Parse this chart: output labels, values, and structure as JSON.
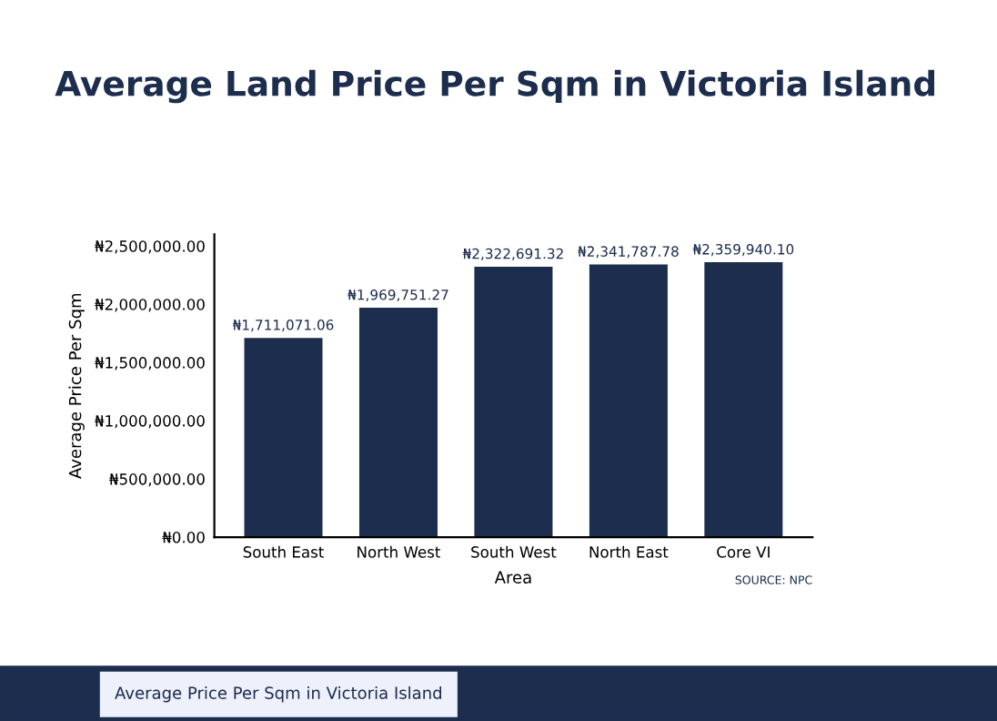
{
  "chart_data": {
    "type": "bar",
    "title": "Average Land Price Per Sqm in Victoria Island",
    "xlabel": "Area",
    "ylabel": "Average Price Per Sqm",
    "categories": [
      "South East",
      "North West",
      "South West",
      "North East",
      "Core VI"
    ],
    "values": [
      1711071.06,
      1969751.27,
      2322691.32,
      2341787.78,
      2359940.1
    ],
    "value_labels": [
      "₦1,711,071.06",
      "₦1,969,751.27",
      "₦2,322,691.32",
      "₦2,341,787.78",
      "₦2,359,940.10"
    ],
    "color": "#1c2d4e",
    "ylim": [
      0,
      2600000
    ],
    "yticks": [
      {
        "value": 0,
        "label": "₦0.00"
      },
      {
        "value": 500000,
        "label": "₦500,000.00"
      },
      {
        "value": 1000000,
        "label": "₦1,000,000.00"
      },
      {
        "value": 1500000,
        "label": "₦1,500,000.00"
      },
      {
        "value": 2000000,
        "label": "₦2,000,000.00"
      },
      {
        "value": 2500000,
        "label": "₦2,500,000.00"
      }
    ],
    "grid": false,
    "annotations": [
      "SOURCE: NPC",
      "Average Price Per Sqm in Victoria Island"
    ]
  }
}
